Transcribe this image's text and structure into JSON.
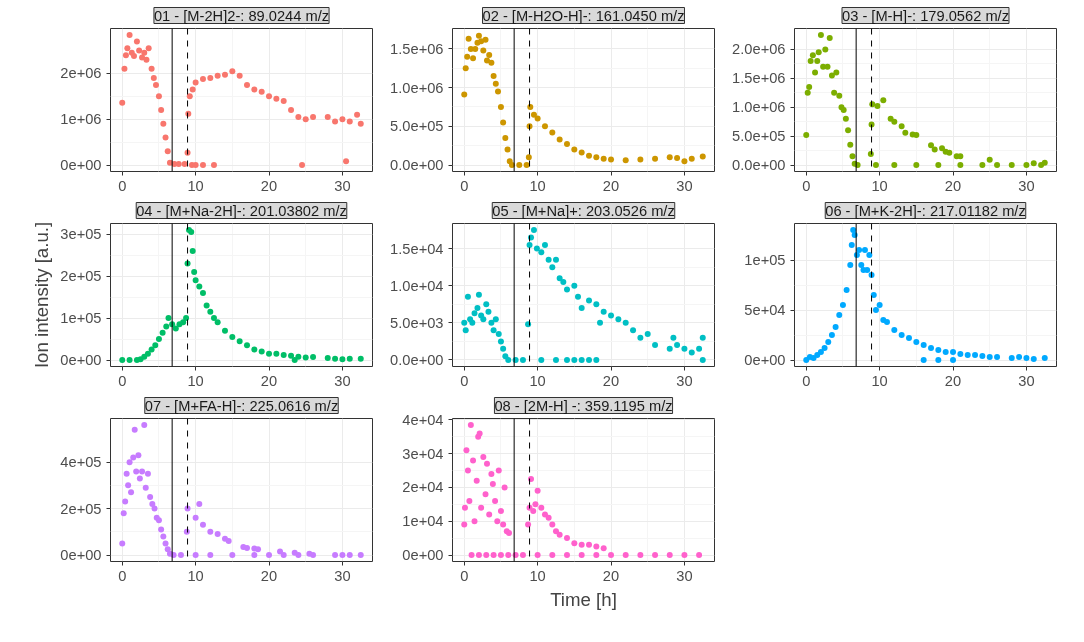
{
  "chart_data": [
    {
      "type": "scatter",
      "title": "01 - [M-2H]2-: 89.0244 m/z",
      "marker": "circle",
      "grid": true,
      "xlim": [
        -1.6,
        34.1
      ],
      "xticks": [
        0,
        10,
        20,
        30
      ],
      "ylim": [
        -142000,
        2982000
      ],
      "yticks": [
        {
          "value": 0,
          "label": "0e+00"
        },
        {
          "value": 1000000,
          "label": "1e+06"
        },
        {
          "value": 2000000,
          "label": "2e+06"
        }
      ],
      "ref_lines": [
        {
          "axis": "x",
          "value": 6.8,
          "line_style": "solid"
        },
        {
          "axis": "x",
          "value": 8.9,
          "line_style": "dashed"
        }
      ],
      "series": [
        {
          "color": "#f8766d",
          "x": [
            0,
            0.3,
            0.5,
            0.7,
            1,
            1.3,
            1.6,
            2,
            2.3,
            2.7,
            3,
            3.3,
            3.6,
            4,
            4.3,
            4.6,
            5,
            5.3,
            5.6,
            5.9,
            6.2,
            6.5,
            7.1,
            7.7,
            8.5,
            8.9,
            9.0,
            9.2,
            9.6,
            10,
            11,
            12,
            13,
            14,
            15,
            16,
            17,
            18,
            19,
            20,
            21,
            22,
            23,
            24,
            25,
            26,
            28,
            29,
            30,
            30.5,
            31,
            32,
            32.5,
            9.5,
            10,
            11,
            12.5,
            24.5
          ],
          "values": [
            1360000,
            2100000,
            2400000,
            2550000,
            2840000,
            2450000,
            2380000,
            2700000,
            2500000,
            2350000,
            2450000,
            2300000,
            2550000,
            2100000,
            1900000,
            1750000,
            1500000,
            1200000,
            900000,
            600000,
            300000,
            50000,
            20000,
            20000,
            20000,
            270000,
            1120000,
            1500000,
            1650000,
            1800000,
            1880000,
            1900000,
            1950000,
            1970000,
            2050000,
            1950000,
            1750000,
            1650000,
            1600000,
            1500000,
            1450000,
            1400000,
            1200000,
            1050000,
            1000000,
            1050000,
            1050000,
            950000,
            1000000,
            80000,
            950000,
            1100000,
            900000,
            0,
            0,
            0,
            0,
            0
          ]
        }
      ]
    },
    {
      "type": "scatter",
      "title": "02 - [M-H2O-H]-: 161.0450 m/z",
      "marker": "circle",
      "grid": true,
      "xlim": [
        -1.6,
        34.1
      ],
      "xticks": [
        0,
        10,
        20,
        30
      ],
      "ylim": [
        -84000,
        1764000
      ],
      "yticks": [
        {
          "value": 0,
          "label": "0.0e+00"
        },
        {
          "value": 500000,
          "label": "5.0e+05"
        },
        {
          "value": 1000000,
          "label": "1.0e+06"
        },
        {
          "value": 1500000,
          "label": "1.5e+06"
        }
      ],
      "ref_lines": [
        {
          "axis": "x",
          "value": 6.8,
          "line_style": "solid"
        },
        {
          "axis": "x",
          "value": 8.9,
          "line_style": "dashed"
        }
      ],
      "series": [
        {
          "color": "#cd9600",
          "x": [
            0,
            0.2,
            0.4,
            0.6,
            0.9,
            1.2,
            1.5,
            1.8,
            2,
            2.3,
            2.6,
            2.9,
            3.1,
            3.4,
            3.7,
            4,
            4.3,
            4.6,
            5,
            5.3,
            5.6,
            5.9,
            6.2,
            6.5,
            7.5,
            8.5,
            8.8,
            8.9,
            9.0,
            9.5,
            10,
            11,
            12,
            13,
            14,
            15,
            16,
            17,
            18,
            19,
            20,
            22,
            24,
            26,
            28,
            29,
            30,
            31,
            32.5
          ],
          "values": [
            910000,
            1250000,
            1400000,
            1630000,
            1500000,
            1380000,
            1500000,
            1580000,
            1670000,
            1600000,
            1480000,
            1620000,
            1350000,
            1420000,
            1320000,
            1150000,
            1050000,
            950000,
            750000,
            550000,
            350000,
            200000,
            50000,
            0,
            0,
            0,
            100000,
            500000,
            750000,
            650000,
            600000,
            500000,
            420000,
            330000,
            270000,
            200000,
            160000,
            120000,
            100000,
            80000,
            70000,
            60000,
            70000,
            80000,
            100000,
            90000,
            50000,
            80000,
            110000
          ]
        }
      ]
    },
    {
      "type": "scatter",
      "title": "03 - [M-H]-: 179.0562 m/z",
      "marker": "circle",
      "grid": true,
      "xlim": [
        -1.6,
        34.1
      ],
      "xticks": [
        0,
        10,
        20,
        30
      ],
      "ylim": [
        -112500,
        2362500
      ],
      "yticks": [
        {
          "value": 0,
          "label": "0.0e+00"
        },
        {
          "value": 500000,
          "label": "5.0e+05"
        },
        {
          "value": 1000000,
          "label": "1.0e+06"
        },
        {
          "value": 1500000,
          "label": "1.5e+06"
        },
        {
          "value": 2000000,
          "label": "2.0e+06"
        }
      ],
      "ref_lines": [
        {
          "axis": "x",
          "value": 6.8,
          "line_style": "solid"
        },
        {
          "axis": "x",
          "value": 8.9,
          "line_style": "dashed"
        }
      ],
      "series": [
        {
          "color": "#7cae00",
          "x": [
            0,
            0.2,
            0.4,
            0.6,
            0.9,
            1.2,
            1.5,
            1.7,
            2,
            2.3,
            2.6,
            2.9,
            3.2,
            3.5,
            3.8,
            4.1,
            4.5,
            4.8,
            5.1,
            5.4,
            5.7,
            6.0,
            6.3,
            6.6,
            8.8,
            8.9,
            9.0,
            9.7,
            10.5,
            11.5,
            12,
            13,
            13.5,
            14.5,
            15,
            17,
            17.5,
            18.5,
            19,
            19.5,
            20.5,
            21,
            25,
            7,
            9.5,
            12,
            15,
            18,
            21,
            24,
            26,
            28,
            30,
            32,
            31,
            32.5
          ],
          "values": [
            520000,
            1250000,
            1350000,
            1800000,
            1900000,
            1600000,
            1800000,
            1950000,
            2250000,
            1700000,
            2000000,
            1700000,
            2200000,
            1550000,
            1250000,
            1600000,
            1200000,
            1000000,
            950000,
            800000,
            600000,
            350000,
            150000,
            20000,
            190000,
            700000,
            1050000,
            1020000,
            1120000,
            800000,
            750000,
            670000,
            560000,
            530000,
            520000,
            340000,
            270000,
            290000,
            230000,
            210000,
            150000,
            150000,
            90000,
            0,
            0,
            0,
            0,
            0,
            0,
            0,
            0,
            0,
            0,
            0,
            30000,
            40000
          ]
        }
      ]
    },
    {
      "type": "scatter",
      "title": "04 - [M+Na-2H]-: 201.03802 m/z",
      "ylabel": "Ion intensity [a.u.]",
      "marker": "circle",
      "grid": true,
      "xlim": [
        -1.6,
        34.1
      ],
      "xticks": [
        0,
        10,
        20,
        30
      ],
      "ylim": [
        -15500,
        325500
      ],
      "yticks": [
        {
          "value": 0,
          "label": "0e+00"
        },
        {
          "value": 100000,
          "label": "1e+05"
        },
        {
          "value": 200000,
          "label": "2e+05"
        },
        {
          "value": 300000,
          "label": "3e+05"
        }
      ],
      "ref_lines": [
        {
          "axis": "x",
          "value": 6.8,
          "line_style": "solid"
        },
        {
          "axis": "x",
          "value": 8.9,
          "line_style": "dashed"
        }
      ],
      "series": [
        {
          "color": "#00be67",
          "x": [
            0,
            1,
            2,
            2.5,
            3,
            3.5,
            4,
            4.5,
            5,
            5.5,
            6,
            6.3,
            6.8,
            7.3,
            7.8,
            8.3,
            8.7,
            8.9,
            9.1,
            9.4,
            9.6,
            9.8,
            10,
            10.5,
            11,
            11.5,
            12,
            12.5,
            13,
            14,
            15,
            16,
            17,
            18,
            19,
            20,
            21,
            22,
            23,
            23.5,
            24,
            25,
            26,
            28,
            29,
            30,
            31,
            32.5
          ],
          "values": [
            0,
            0,
            0,
            2000,
            8000,
            15000,
            25000,
            35000,
            50000,
            65000,
            80000,
            100000,
            85000,
            75000,
            85000,
            90000,
            100000,
            230000,
            310000,
            305000,
            260000,
            210000,
            190000,
            175000,
            160000,
            130000,
            115000,
            100000,
            90000,
            70000,
            55000,
            45000,
            35000,
            25000,
            20000,
            15000,
            15000,
            12000,
            10000,
            0,
            8000,
            6000,
            7000,
            5000,
            3000,
            2000,
            3000,
            3000
          ]
        }
      ]
    },
    {
      "type": "scatter",
      "title": "05 - [M+Na]+: 203.0526 m/z",
      "marker": "circle",
      "grid": true,
      "xlim": [
        -1.6,
        34.1
      ],
      "xticks": [
        0,
        10,
        20,
        30
      ],
      "ylim": [
        -880,
        18380
      ],
      "yticks": [
        {
          "value": 0,
          "label": "0.0e+00"
        },
        {
          "value": 5000,
          "label": "5.0e+03"
        },
        {
          "value": 10000,
          "label": "1.0e+04"
        },
        {
          "value": 15000,
          "label": "1.5e+04"
        }
      ],
      "ref_lines": [
        {
          "axis": "x",
          "value": 6.8,
          "line_style": "solid"
        },
        {
          "axis": "x",
          "value": 8.9,
          "line_style": "dashed"
        }
      ],
      "series": [
        {
          "color": "#00bfc4",
          "x": [
            0,
            0.2,
            0.5,
            0.8,
            1.1,
            1.4,
            1.8,
            2,
            2.3,
            2.6,
            3,
            3.3,
            3.7,
            4,
            4.3,
            4.7,
            5,
            5.3,
            5.6,
            6,
            7,
            8,
            8.7,
            8.9,
            9.1,
            9.5,
            9.9,
            10.5,
            11,
            11.5,
            12,
            12.5,
            13,
            13.5,
            14,
            15,
            15.5,
            16,
            17,
            18,
            18.5,
            19,
            20,
            21,
            22,
            23,
            24,
            25,
            26,
            28,
            28.5,
            29,
            30,
            31,
            32,
            32.5,
            10.5,
            12.5,
            14,
            15,
            16,
            17,
            18,
            32.5
          ],
          "values": [
            5000,
            4000,
            8500,
            5500,
            5000,
            6300,
            7000,
            8800,
            6000,
            5500,
            7500,
            6500,
            5000,
            4000,
            5500,
            3500,
            2500,
            1500,
            500,
            0,
            0,
            0,
            4800,
            15500,
            16500,
            17500,
            15000,
            14500,
            15500,
            13500,
            12500,
            13500,
            11000,
            10500,
            9500,
            10000,
            8500,
            7000,
            8000,
            7500,
            5000,
            6500,
            6000,
            5500,
            5000,
            4000,
            3000,
            3500,
            2000,
            1500,
            3000,
            2000,
            1500,
            1000,
            1500,
            3000,
            0,
            0,
            0,
            0,
            0,
            0,
            0,
            0
          ]
        }
      ]
    },
    {
      "type": "scatter",
      "title": "06 - [M+K-2H]-: 217.01182 m/z",
      "marker": "circle",
      "grid": true,
      "xlim": [
        -1.6,
        34.1
      ],
      "xticks": [
        0,
        10,
        20,
        30
      ],
      "ylim": [
        -6500,
        136500
      ],
      "yticks": [
        {
          "value": 0,
          "label": "0e+00"
        },
        {
          "value": 50000,
          "label": "5e+04"
        },
        {
          "value": 100000,
          "label": "1e+05"
        }
      ],
      "ref_lines": [
        {
          "axis": "x",
          "value": 6.8,
          "line_style": "solid"
        },
        {
          "axis": "x",
          "value": 8.9,
          "line_style": "dashed"
        }
      ],
      "series": [
        {
          "color": "#00a9ff",
          "x": [
            0,
            0.5,
            1,
            1.5,
            2,
            2.5,
            3,
            3.5,
            4,
            4.5,
            5,
            5.5,
            6,
            6.2,
            6.4,
            6.6,
            6.9,
            7.2,
            7.5,
            7.8,
            8.0,
            8.3,
            8.6,
            8.9,
            9.2,
            9.5,
            10,
            10.5,
            11,
            12,
            13,
            14,
            15,
            16,
            17,
            18,
            19,
            20,
            21,
            22,
            23,
            24,
            25,
            26,
            28,
            29,
            30,
            31,
            32.5,
            16,
            18,
            20
          ],
          "values": [
            0,
            3000,
            2000,
            5000,
            8000,
            12000,
            18000,
            25000,
            33000,
            45000,
            55000,
            70000,
            95000,
            115000,
            130000,
            125000,
            105000,
            110000,
            95000,
            90000,
            110000,
            90000,
            105000,
            85000,
            65000,
            50000,
            55000,
            40000,
            38000,
            30000,
            25000,
            22000,
            18000,
            15000,
            12000,
            10000,
            8000,
            8000,
            6000,
            5000,
            5000,
            4000,
            3000,
            3000,
            2000,
            3000,
            2000,
            1000,
            2000,
            0,
            0,
            0
          ]
        }
      ]
    },
    {
      "type": "scatter",
      "title": "07 - [M+FA-H]-: 225.0616 m/z",
      "marker": "circle",
      "grid": true,
      "xlim": [
        -1.6,
        34.1
      ],
      "xticks": [
        0,
        10,
        20,
        30
      ],
      "ylim": [
        -28000,
        588000
      ],
      "yticks": [
        {
          "value": 0,
          "label": "0e+00"
        },
        {
          "value": 200000,
          "label": "2e+05"
        },
        {
          "value": 400000,
          "label": "4e+05"
        }
      ],
      "ref_lines": [
        {
          "axis": "x",
          "value": 6.8,
          "line_style": "solid"
        },
        {
          "axis": "x",
          "value": 8.9,
          "line_style": "dashed"
        }
      ],
      "series": [
        {
          "color": "#c77cff",
          "x": [
            0,
            0.2,
            0.4,
            0.6,
            0.8,
            1.0,
            1.2,
            1.5,
            1.7,
            1.9,
            2.2,
            2.4,
            2.7,
            3.0,
            3.2,
            3.5,
            3.8,
            4.1,
            4.4,
            4.7,
            5.0,
            5.3,
            5.6,
            5.9,
            6.2,
            6.5,
            7,
            8,
            8.8,
            8.9,
            10,
            10.5,
            11,
            12,
            13,
            14,
            14.5,
            16.5,
            17,
            18,
            18.5,
            21.5,
            23.5,
            25.5,
            10,
            12,
            15,
            18,
            20,
            22,
            24,
            26,
            29,
            30,
            31,
            32.5
          ],
          "values": [
            50000,
            180000,
            230000,
            350000,
            300000,
            400000,
            270000,
            420000,
            540000,
            360000,
            430000,
            330000,
            360000,
            560000,
            290000,
            350000,
            250000,
            220000,
            200000,
            160000,
            150000,
            110000,
            80000,
            50000,
            25000,
            5000,
            0,
            0,
            100000,
            200000,
            160000,
            220000,
            130000,
            100000,
            90000,
            70000,
            60000,
            35000,
            30000,
            28000,
            25000,
            15000,
            10000,
            5000,
            0,
            0,
            0,
            0,
            0,
            0,
            0,
            0,
            0,
            0,
            0,
            0
          ]
        }
      ]
    },
    {
      "type": "scatter",
      "title": "08 - [2M-H] -: 359.1195 m/z",
      "xlabel": "Time [h]",
      "marker": "circle",
      "grid": true,
      "xlim": [
        -1.6,
        34.1
      ],
      "xticks": [
        0,
        10,
        20,
        30
      ],
      "ylim": [
        -1925,
        40425
      ],
      "yticks": [
        {
          "value": 0,
          "label": "0e+00"
        },
        {
          "value": 10000,
          "label": "1e+04"
        },
        {
          "value": 20000,
          "label": "2e+04"
        },
        {
          "value": 30000,
          "label": "3e+04"
        },
        {
          "value": 40000,
          "label": "4e+04"
        }
      ],
      "ref_lines": [
        {
          "axis": "x",
          "value": 6.8,
          "line_style": "solid"
        },
        {
          "axis": "x",
          "value": 8.9,
          "line_style": "dashed"
        }
      ],
      "series": [
        {
          "color": "#ff61cc",
          "x": [
            0,
            0.1,
            0.3,
            0.5,
            0.7,
            0.9,
            1.2,
            1.4,
            1.7,
            1.9,
            2.1,
            2.3,
            2.6,
            2.9,
            3.1,
            3.4,
            3.7,
            3.9,
            4.2,
            4.5,
            4.7,
            5.0,
            5.3,
            5.5,
            5.8,
            6.1,
            8.7,
            8.9,
            9.1,
            9.4,
            9.7,
            10,
            10.5,
            11,
            11.5,
            12,
            12.5,
            13,
            14,
            15,
            16,
            17,
            18,
            19,
            1,
            2,
            3,
            4,
            5,
            6,
            7,
            8,
            10,
            12,
            14,
            16,
            18,
            20,
            22,
            24,
            26,
            28,
            30,
            32
          ],
          "values": [
            9000,
            14000,
            31000,
            25000,
            16000,
            38500,
            28000,
            10000,
            22000,
            35000,
            36000,
            14000,
            29000,
            18000,
            27000,
            12000,
            24000,
            21000,
            16000,
            10000,
            25000,
            13000,
            9000,
            20000,
            7000,
            6500,
            9000,
            14000,
            22500,
            13000,
            15000,
            19000,
            14000,
            12000,
            11000,
            9000,
            7000,
            6000,
            5000,
            3500,
            3000,
            3000,
            2500,
            2000,
            0,
            0,
            0,
            0,
            0,
            0,
            0,
            0,
            0,
            0,
            0,
            0,
            0,
            0,
            0,
            0,
            0,
            0,
            0,
            0
          ]
        }
      ]
    }
  ]
}
